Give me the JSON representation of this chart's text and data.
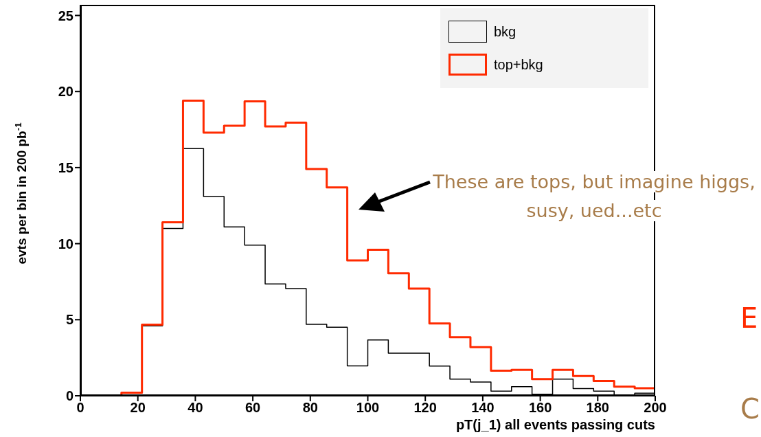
{
  "chart_data": {
    "type": "histogram",
    "xlabel": "pT(j_1) all events passing cuts",
    "ylabel": "evts per bin in 200 pb$^{-1}$",
    "bins": [
      0,
      7.14,
      14.29,
      21.43,
      28.57,
      35.71,
      42.86,
      50,
      57.14,
      64.29,
      71.43,
      78.57,
      85.71,
      92.86,
      100,
      107.14,
      114.29,
      121.43,
      128.57,
      135.71,
      142.86,
      150,
      157.14,
      164.29,
      171.43,
      178.57,
      185.71,
      192.86,
      200
    ],
    "series": [
      {
        "name": "bkg",
        "color": "#000000",
        "values": [
          0,
          0,
          0.2,
          4.6,
          11.0,
          16.25,
          13.1,
          11.1,
          9.9,
          7.35,
          7.05,
          4.7,
          4.5,
          1.97,
          3.67,
          2.8,
          2.8,
          1.95,
          1.1,
          0.9,
          0.3,
          0.6,
          0.1,
          1.1,
          0.47,
          0.3,
          0,
          0.17
        ]
      },
      {
        "name": "top+bkg",
        "color": "#ff2a00",
        "values": [
          0,
          0,
          0.2,
          4.67,
          11.4,
          19.4,
          17.3,
          17.75,
          19.35,
          17.7,
          17.95,
          14.9,
          13.7,
          8.9,
          9.6,
          8.05,
          7.05,
          4.75,
          3.85,
          3.2,
          1.65,
          1.7,
          1.1,
          1.7,
          1.3,
          0.97,
          0.6,
          0.5
        ]
      }
    ],
    "xlim": [
      0,
      200
    ],
    "xticks": [
      0,
      20,
      40,
      60,
      80,
      100,
      120,
      140,
      160,
      180,
      200
    ],
    "ylim": [
      0,
      25.7
    ],
    "yticks": [
      0,
      5,
      10,
      15,
      20,
      25
    ],
    "legend": "top right",
    "annotations": [
      "These are tops, but imagine higgs, susy, ued...etc",
      "E",
      "C"
    ]
  }
}
